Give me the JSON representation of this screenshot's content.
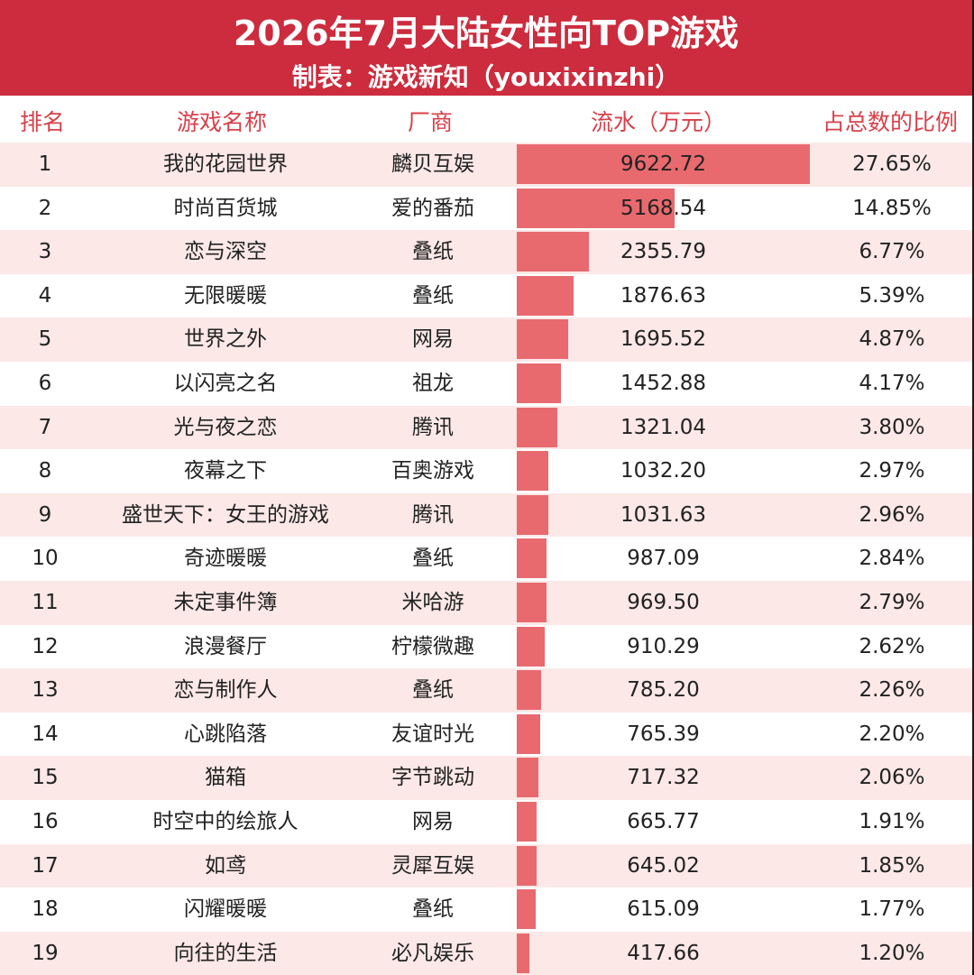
{
  "header": {
    "title": "2026年7月大陆女性向TOP游戏",
    "subtitle": "制表：游戏新知（youxixinzhi）"
  },
  "colors": {
    "header_bg": "#cc2c3e",
    "bar": "#e86a6f",
    "stripe": "#fbe8e7",
    "header_text": "#d8404a"
  },
  "chart_data": {
    "type": "table",
    "columns": [
      "排名",
      "游戏名称",
      "厂商",
      "流水（万元）",
      "占总数的比例"
    ],
    "rows": [
      {
        "rank": "1",
        "name": "我的花园世界",
        "vendor": "麟贝互娱",
        "revenue": "9622.72",
        "value": 9622.72,
        "share": "27.65%"
      },
      {
        "rank": "2",
        "name": "时尚百货城",
        "vendor": "爱的番茄",
        "revenue": "5168.54",
        "value": 5168.54,
        "share": "14.85%"
      },
      {
        "rank": "3",
        "name": "恋与深空",
        "vendor": "叠纸",
        "revenue": "2355.79",
        "value": 2355.79,
        "share": "6.77%"
      },
      {
        "rank": "4",
        "name": "无限暖暖",
        "vendor": "叠纸",
        "revenue": "1876.63",
        "value": 1876.63,
        "share": "5.39%"
      },
      {
        "rank": "5",
        "name": "世界之外",
        "vendor": "网易",
        "revenue": "1695.52",
        "value": 1695.52,
        "share": "4.87%"
      },
      {
        "rank": "6",
        "name": "以闪亮之名",
        "vendor": "祖龙",
        "revenue": "1452.88",
        "value": 1452.88,
        "share": "4.17%"
      },
      {
        "rank": "7",
        "name": "光与夜之恋",
        "vendor": "腾讯",
        "revenue": "1321.04",
        "value": 1321.04,
        "share": "3.80%"
      },
      {
        "rank": "8",
        "name": "夜幕之下",
        "vendor": "百奥游戏",
        "revenue": "1032.20",
        "value": 1032.2,
        "share": "2.97%"
      },
      {
        "rank": "9",
        "name": "盛世天下：女王的游戏",
        "vendor": "腾讯",
        "revenue": "1031.63",
        "value": 1031.63,
        "share": "2.96%"
      },
      {
        "rank": "10",
        "name": "奇迹暖暖",
        "vendor": "叠纸",
        "revenue": "987.09",
        "value": 987.09,
        "share": "2.84%"
      },
      {
        "rank": "11",
        "name": "未定事件簿",
        "vendor": "米哈游",
        "revenue": "969.50",
        "value": 969.5,
        "share": "2.79%"
      },
      {
        "rank": "12",
        "name": "浪漫餐厅",
        "vendor": "柠檬微趣",
        "revenue": "910.29",
        "value": 910.29,
        "share": "2.62%"
      },
      {
        "rank": "13",
        "name": "恋与制作人",
        "vendor": "叠纸",
        "revenue": "785.20",
        "value": 785.2,
        "share": "2.26%"
      },
      {
        "rank": "14",
        "name": "心跳陷落",
        "vendor": "友谊时光",
        "revenue": "765.39",
        "value": 765.39,
        "share": "2.20%"
      },
      {
        "rank": "15",
        "name": "猫箱",
        "vendor": "字节跳动",
        "revenue": "717.32",
        "value": 717.32,
        "share": "2.06%"
      },
      {
        "rank": "16",
        "name": "时空中的绘旅人",
        "vendor": "网易",
        "revenue": "665.77",
        "value": 665.77,
        "share": "1.91%"
      },
      {
        "rank": "17",
        "name": "如鸢",
        "vendor": "灵犀互娱",
        "revenue": "645.02",
        "value": 645.02,
        "share": "1.85%"
      },
      {
        "rank": "18",
        "name": "闪耀暖暖",
        "vendor": "叠纸",
        "revenue": "615.09",
        "value": 615.09,
        "share": "1.77%"
      },
      {
        "rank": "19",
        "name": "向往的生活",
        "vendor": "必凡娱乐",
        "revenue": "417.66",
        "value": 417.66,
        "share": "1.20%"
      }
    ]
  }
}
